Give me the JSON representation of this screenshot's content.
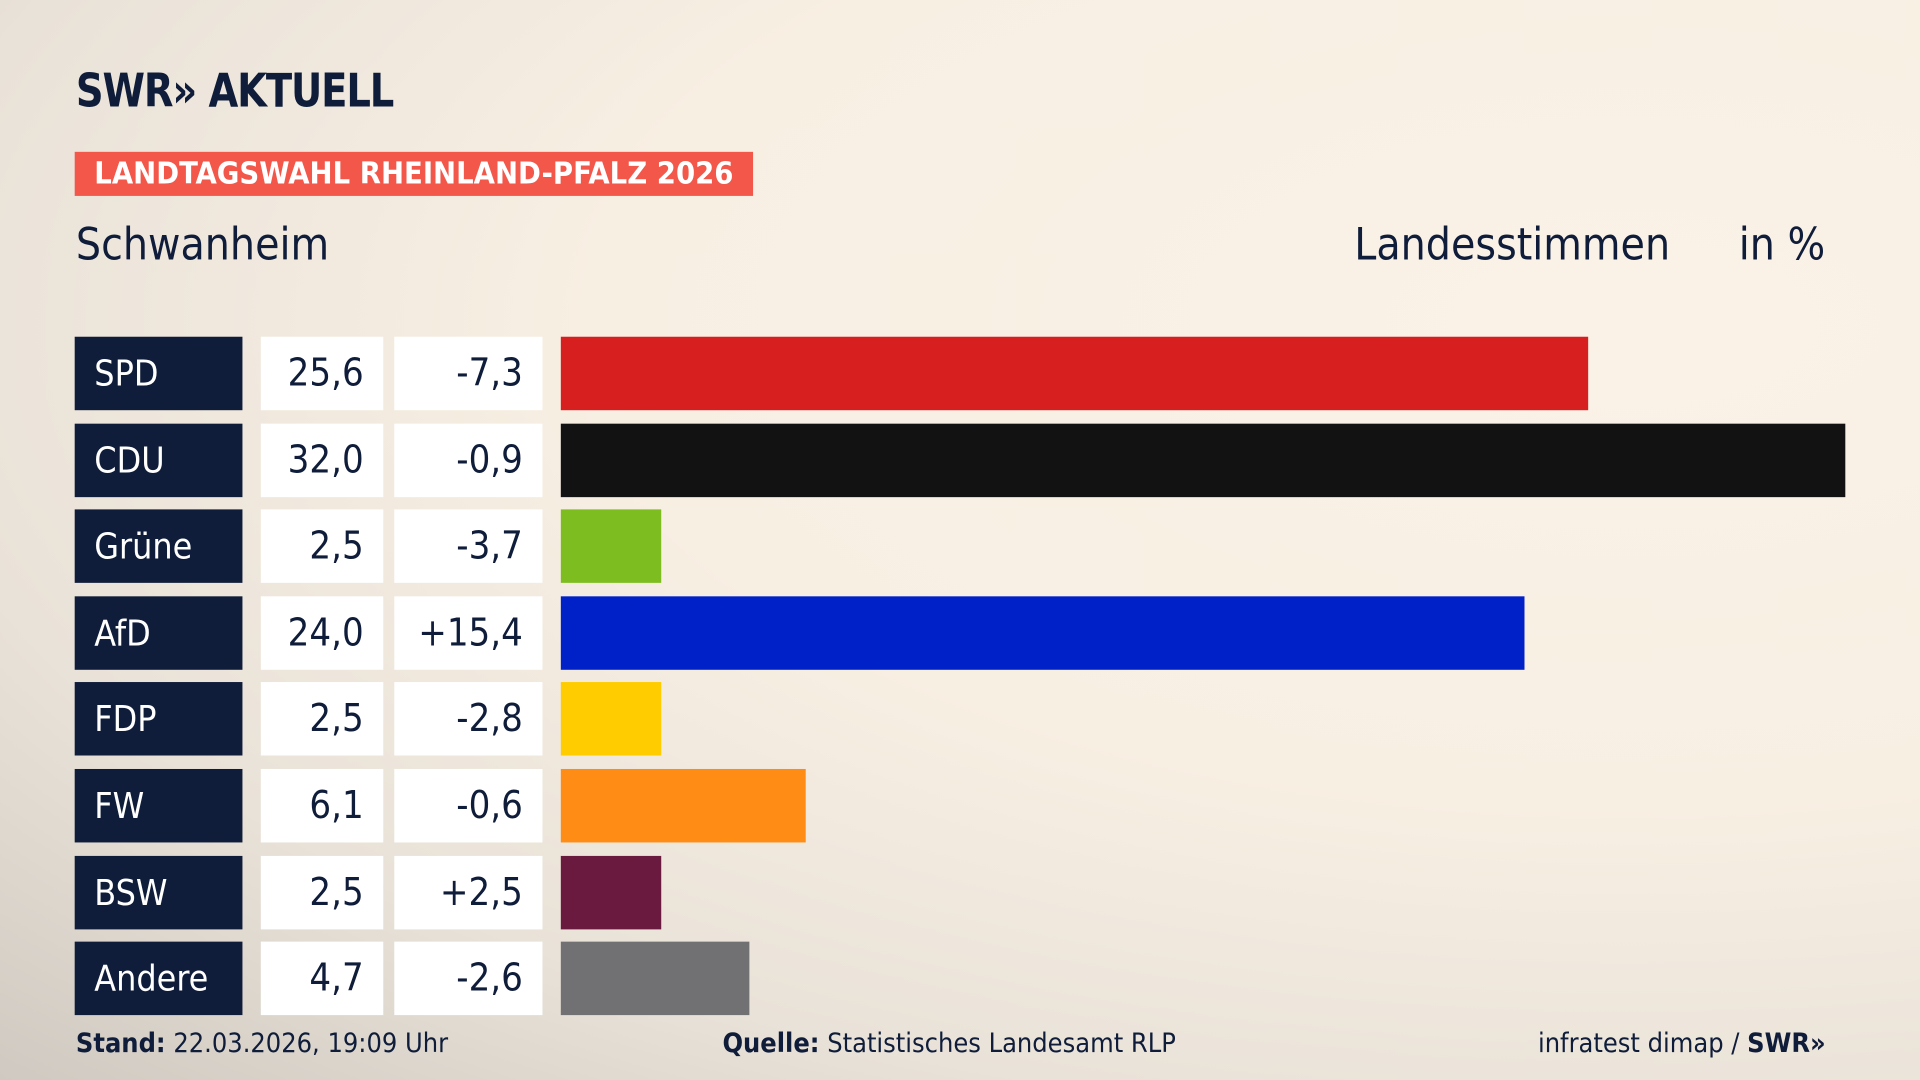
{
  "brand": {
    "logo": "SWR» AKTUELL"
  },
  "tag": "LANDTAGSWAHL RHEINLAND-PFALZ 2026",
  "header": {
    "location": "Schwanheim",
    "type": "Landesstimmen",
    "unit": "in %"
  },
  "chart_data": {
    "type": "bar",
    "orientation": "horizontal",
    "categories": [
      "SPD",
      "CDU",
      "Grüne",
      "AfD",
      "FDP",
      "FW",
      "BSW",
      "Andere"
    ],
    "values": [
      25.6,
      32.0,
      2.5,
      24.0,
      2.5,
      6.1,
      2.5,
      4.7
    ],
    "value_labels": [
      "25,6",
      "32,0",
      "2,5",
      "24,0",
      "2,5",
      "6,1",
      "2,5",
      "4,7"
    ],
    "change_labels": [
      "-7,3",
      "-0,9",
      "-3,7",
      "+15,4",
      "-2,8",
      "-0,6",
      "+2,5",
      "-2,6"
    ],
    "colors": [
      "#d71f20",
      "#121212",
      "#7dbd1f",
      "#0021c8",
      "#ffcc00",
      "#ff8c14",
      "#6a1a3e",
      "#717173"
    ],
    "xlim": [
      0,
      32.0
    ]
  },
  "footer": {
    "stand_label": "Stand:",
    "stand_value": "22.03.2026, 19:09 Uhr",
    "source_label": "Quelle:",
    "source_value": "Statistisches Landesamt RLP",
    "credit": "infratest dimap /",
    "credit_logo": "SWR»"
  }
}
